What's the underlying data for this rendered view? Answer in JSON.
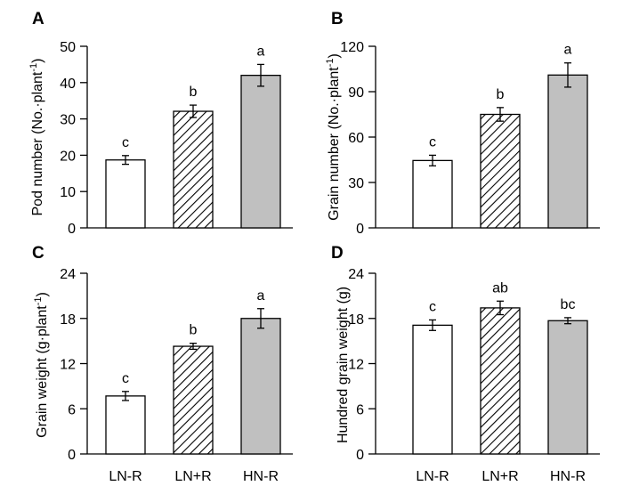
{
  "chart_data": [
    {
      "panel": "A",
      "type": "bar",
      "ylabel": "Pod number (No.·plant⁻¹)",
      "ylim": [
        0,
        50
      ],
      "yticks": [
        0,
        10,
        20,
        30,
        40,
        50
      ],
      "categories": [
        "LN-R",
        "LN+R",
        "HN-R"
      ],
      "values": [
        18.7,
        32.1,
        42.0
      ],
      "errors": [
        1.2,
        1.7,
        3.0
      ],
      "significance": [
        "c",
        "b",
        "a"
      ],
      "fills": [
        "white",
        "hatch",
        "gray"
      ]
    },
    {
      "panel": "B",
      "type": "bar",
      "ylabel": "Grain number (No.·plant⁻¹)",
      "ylim": [
        0,
        120
      ],
      "yticks": [
        0,
        30,
        60,
        90,
        120
      ],
      "categories": [
        "LN-R",
        "LN+R",
        "HN-R"
      ],
      "values": [
        44.5,
        75.0,
        101.0
      ],
      "errors": [
        3.5,
        4.5,
        8.0
      ],
      "significance": [
        "c",
        "b",
        "a"
      ],
      "fills": [
        "white",
        "hatch",
        "gray"
      ]
    },
    {
      "panel": "C",
      "type": "bar",
      "ylabel": "Grain weight (g·plant⁻¹)",
      "ylim": [
        0,
        24
      ],
      "yticks": [
        0,
        6,
        12,
        18,
        24
      ],
      "categories": [
        "LN-R",
        "LN+R",
        "HN-R"
      ],
      "values": [
        7.7,
        14.3,
        18.0
      ],
      "errors": [
        0.6,
        0.4,
        1.3
      ],
      "significance": [
        "c",
        "b",
        "a"
      ],
      "fills": [
        "white",
        "hatch",
        "gray"
      ]
    },
    {
      "panel": "D",
      "type": "bar",
      "ylabel": "Hundred grain weight (g)",
      "ylim": [
        0,
        24
      ],
      "yticks": [
        0,
        6,
        12,
        18,
        24
      ],
      "categories": [
        "LN-R",
        "LN+R",
        "HN-R"
      ],
      "values": [
        17.1,
        19.4,
        17.7
      ],
      "errors": [
        0.7,
        0.9,
        0.4
      ],
      "significance": [
        "c",
        "ab",
        "bc"
      ],
      "fills": [
        "white",
        "hatch",
        "gray"
      ]
    }
  ],
  "colors": {
    "white": "#ffffff",
    "gray": "#c0c0c0",
    "hatch_line": "#000000"
  }
}
